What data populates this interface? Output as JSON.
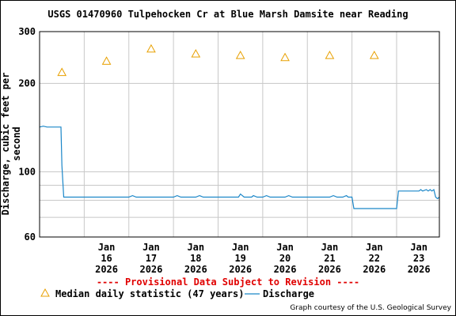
{
  "chart_data": {
    "type": "line",
    "title": "USGS 01470960 Tulpehocken Cr at Blue Marsh Damsite near Reading",
    "ylabel": "Discharge, cubic feet per second",
    "y_scale": "log",
    "ylim": [
      60,
      300
    ],
    "y_ticks": [
      {
        "value": 60,
        "label": "60"
      },
      {
        "value": 100,
        "label": "100"
      },
      {
        "value": 200,
        "label": "200"
      },
      {
        "value": 300,
        "label": "300"
      }
    ],
    "y_minor_grid": [
      70,
      80,
      90
    ],
    "xlim": [
      "2026-01-15T00:00",
      "2026-01-23T23:00"
    ],
    "x_ticks": [
      {
        "date": "2026-01-16",
        "label": [
          "Jan",
          "16",
          "2026"
        ]
      },
      {
        "date": "2026-01-17",
        "label": [
          "Jan",
          "17",
          "2026"
        ]
      },
      {
        "date": "2026-01-18",
        "label": [
          "Jan",
          "18",
          "2026"
        ]
      },
      {
        "date": "2026-01-19",
        "label": [
          "Jan",
          "19",
          "2026"
        ]
      },
      {
        "date": "2026-01-20",
        "label": [
          "Jan",
          "20",
          "2026"
        ]
      },
      {
        "date": "2026-01-21",
        "label": [
          "Jan",
          "21",
          "2026"
        ]
      },
      {
        "date": "2026-01-22",
        "label": [
          "Jan",
          "22",
          "2026"
        ]
      },
      {
        "date": "2026-01-23",
        "label": [
          "Jan",
          "23",
          "2026"
        ]
      }
    ],
    "grid": true,
    "series": [
      {
        "name": "Discharge",
        "color": "#1a86c8",
        "points": [
          [
            "2026-01-15T00:00",
            142
          ],
          [
            "2026-01-15T02:00",
            143
          ],
          [
            "2026-01-15T04:00",
            142
          ],
          [
            "2026-01-15T08:00",
            142
          ],
          [
            "2026-01-15T10:00",
            142
          ],
          [
            "2026-01-15T11:30",
            142
          ],
          [
            "2026-01-15T12:00",
            105
          ],
          [
            "2026-01-15T13:00",
            82
          ],
          [
            "2026-01-16T00:00",
            82
          ],
          [
            "2026-01-16T12:00",
            82
          ],
          [
            "2026-01-17T00:00",
            82
          ],
          [
            "2026-01-17T02:00",
            83
          ],
          [
            "2026-01-17T04:00",
            82
          ],
          [
            "2026-01-17T12:00",
            82
          ],
          [
            "2026-01-18T00:00",
            82
          ],
          [
            "2026-01-18T02:00",
            83
          ],
          [
            "2026-01-18T04:00",
            82
          ],
          [
            "2026-01-18T12:00",
            82
          ],
          [
            "2026-01-18T14:00",
            83
          ],
          [
            "2026-01-18T16:00",
            82
          ],
          [
            "2026-01-19T00:00",
            82
          ],
          [
            "2026-01-19T11:00",
            82
          ],
          [
            "2026-01-19T12:00",
            84
          ],
          [
            "2026-01-19T14:00",
            82
          ],
          [
            "2026-01-19T18:00",
            82
          ],
          [
            "2026-01-19T19:00",
            83
          ],
          [
            "2026-01-19T21:00",
            82
          ],
          [
            "2026-01-20T00:00",
            82
          ],
          [
            "2026-01-20T02:00",
            83
          ],
          [
            "2026-01-20T04:00",
            82
          ],
          [
            "2026-01-20T12:00",
            82
          ],
          [
            "2026-01-20T14:00",
            83
          ],
          [
            "2026-01-20T16:00",
            82
          ],
          [
            "2026-01-21T00:00",
            82
          ],
          [
            "2026-01-21T12:00",
            82
          ],
          [
            "2026-01-21T14:00",
            83
          ],
          [
            "2026-01-21T16:00",
            82
          ],
          [
            "2026-01-21T19:00",
            82
          ],
          [
            "2026-01-21T21:00",
            83
          ],
          [
            "2026-01-21T22:00",
            82
          ],
          [
            "2026-01-22T00:00",
            82
          ],
          [
            "2026-01-22T01:00",
            75
          ],
          [
            "2026-01-22T12:00",
            75
          ],
          [
            "2026-01-22T23:00",
            75
          ],
          [
            "2026-01-23T00:00",
            75
          ],
          [
            "2026-01-23T01:00",
            86
          ],
          [
            "2026-01-23T04:00",
            86
          ],
          [
            "2026-01-23T08:00",
            86
          ],
          [
            "2026-01-23T10:00",
            86
          ],
          [
            "2026-01-23T12:00",
            86
          ],
          [
            "2026-01-23T13:00",
            87
          ],
          [
            "2026-01-23T14:00",
            86
          ],
          [
            "2026-01-23T16:00",
            87
          ],
          [
            "2026-01-23T17:00",
            86
          ],
          [
            "2026-01-23T18:00",
            87
          ],
          [
            "2026-01-23T19:00",
            86
          ],
          [
            "2026-01-23T20:00",
            87
          ],
          [
            "2026-01-23T21:00",
            82
          ],
          [
            "2026-01-23T22:00",
            81
          ],
          [
            "2026-01-23T23:00",
            82
          ]
        ]
      },
      {
        "name": "Median daily statistic (47 years)",
        "color": "#e8a000",
        "marker": "triangle-open",
        "points": [
          [
            "2026-01-15T12:00",
            218
          ],
          [
            "2026-01-16T12:00",
            238
          ],
          [
            "2026-01-17T12:00",
            262
          ],
          [
            "2026-01-18T12:00",
            252
          ],
          [
            "2026-01-19T12:00",
            249
          ],
          [
            "2026-01-20T12:00",
            245
          ],
          [
            "2026-01-21T12:00",
            249
          ],
          [
            "2026-01-22T12:00",
            249
          ]
        ]
      }
    ],
    "provisional_note": "---- Provisional Data Subject to Revision ----",
    "legend": [
      {
        "label": "Median daily statistic (47 years)",
        "marker": "triangle-open",
        "color": "#e8a000"
      },
      {
        "label": "Discharge",
        "marker": "line",
        "color": "#1a86c8"
      }
    ],
    "legend_placement": "bottom",
    "credit": "Graph courtesy of the U.S. Geological Survey"
  }
}
